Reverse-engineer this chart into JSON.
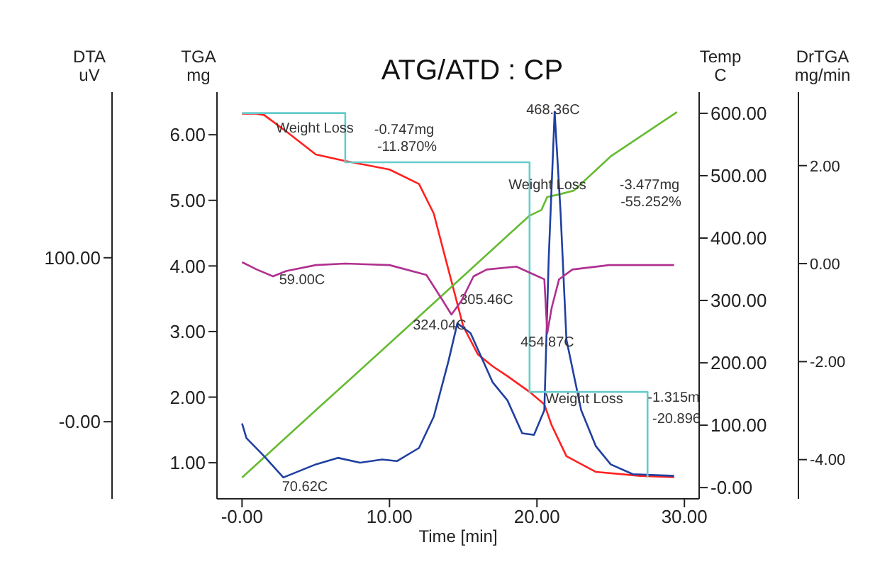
{
  "chart_data": [
    {
      "type": "line",
      "title": "ATG/ATD : CP",
      "xlabel": "Time  [min]",
      "ylabel": "TGA\nmg",
      "y2label": "Temp\nC",
      "y3label": "DTA\nuV",
      "xlim": [
        -1.7,
        31
      ],
      "xticks": [
        {
          "value": 0,
          "label": "-0.00"
        },
        {
          "value": 10,
          "label": "10.00"
        },
        {
          "value": 20,
          "label": "20.00"
        },
        {
          "value": 30,
          "label": "30.00"
        }
      ],
      "ylim": [
        0.45,
        6.65
      ],
      "yticks": [
        {
          "value": 1,
          "label": "1.00"
        },
        {
          "value": 2,
          "label": "2.00"
        },
        {
          "value": 3,
          "label": "3.00"
        },
        {
          "value": 4,
          "label": "4.00"
        },
        {
          "value": 5,
          "label": "5.00"
        },
        {
          "value": 6,
          "label": "6.00"
        }
      ],
      "y2lim": [
        -18,
        634
      ],
      "y2ticks": [
        {
          "value": 0,
          "label": "-0.00"
        },
        {
          "value": 100,
          "label": "100.00"
        },
        {
          "value": 200,
          "label": "200.00"
        },
        {
          "value": 300,
          "label": "300.00"
        },
        {
          "value": 400,
          "label": "400.00"
        },
        {
          "value": 500,
          "label": "500.00"
        },
        {
          "value": 600,
          "label": "600.00"
        }
      ],
      "y3lim": [
        -47,
        201
      ],
      "y3ticks": [
        {
          "value": 0,
          "label": "-0.00"
        },
        {
          "value": 100,
          "label": "100.00"
        }
      ],
      "series": [
        {
          "color": "#ff2020",
          "x": [
            0,
            1,
            1.5,
            3,
            5,
            7,
            10,
            12,
            13,
            14,
            15,
            16,
            17,
            18,
            19.5,
            20.5,
            21,
            22,
            24,
            27,
            29.3
          ],
          "values": [
            6.32,
            6.32,
            6.3,
            6.05,
            5.7,
            5.6,
            5.47,
            5.25,
            4.8,
            3.94,
            3.08,
            2.65,
            2.47,
            2.32,
            2.08,
            1.89,
            1.57,
            1.1,
            0.86,
            0.8,
            0.78
          ]
        },
        {
          "axis": "y2",
          "color": "#66bb33",
          "x": [
            0,
            5,
            10,
            15,
            19.5,
            20.3,
            20.7,
            21.5,
            22.5,
            25,
            29.5
          ],
          "values": [
            16,
            124,
            231,
            339,
            436,
            445,
            466,
            470,
            476,
            531,
            602
          ]
        },
        {
          "axis": "y3",
          "color": "#2040a0",
          "x": [
            0,
            0.3,
            1.5,
            2.8,
            5,
            6.5,
            8,
            9.5,
            10.5,
            12,
            13,
            14,
            14.6,
            15.5,
            17,
            18,
            19,
            19.8,
            20.5,
            20.8,
            21.2,
            21.6,
            22,
            23,
            24,
            25,
            26.5,
            29.3
          ],
          "values": [
            -1,
            -10,
            -21,
            -34,
            -26,
            -22,
            -25,
            -23,
            -24,
            -16,
            3,
            37,
            60,
            54,
            24,
            13,
            -7,
            -8,
            7,
            100,
            189,
            128,
            50,
            7,
            -15,
            -26,
            -32,
            -33
          ]
        },
        {
          "color": "#66cccc",
          "x": [
            0,
            7,
            7,
            19.5,
            19.5,
            27.5,
            27.5
          ],
          "values": [
            6.33,
            6.33,
            5.58,
            5.58,
            2.08,
            2.08,
            0.78
          ]
        }
      ],
      "annotations": [
        "59.00C",
        "70.62C",
        "324.04C",
        "305.46C",
        "454.87C",
        "468.36C",
        "Weight Loss",
        "-0.747mg",
        "-11.870%",
        "Weight Loss",
        "-3.477mg",
        "-55.252%",
        "Weight Loss",
        "-1.315m",
        "-20.896"
      ]
    },
    {
      "type": "line",
      "ylabel": "DrTGA\nmg/min",
      "tick_labels": "y",
      "xlim": [
        -1.7,
        31
      ],
      "ylim": [
        -4.8,
        3.5
      ],
      "yticks": [
        {
          "value": -4,
          "label": "-4.00"
        },
        {
          "value": -2,
          "label": "-2.00"
        },
        {
          "value": 0,
          "label": "0.00"
        },
        {
          "value": 2,
          "label": "2.00"
        }
      ],
      "series": [
        {
          "color": "#b03090",
          "x": [
            0,
            1,
            2.1,
            3,
            5,
            7,
            10,
            12.5,
            13.5,
            14.2,
            14.9,
            15.7,
            16.6,
            18.6,
            20.5,
            20.7,
            21,
            21.5,
            22.4,
            24.9,
            29.3
          ],
          "values": [
            0.03,
            -0.12,
            -0.26,
            -0.15,
            -0.03,
            0,
            -0.03,
            -0.23,
            -0.7,
            -1.04,
            -0.75,
            -0.26,
            -0.12,
            -0.06,
            -0.32,
            -1.42,
            -0.9,
            -0.32,
            -0.12,
            -0.03,
            -0.03
          ]
        }
      ]
    }
  ]
}
